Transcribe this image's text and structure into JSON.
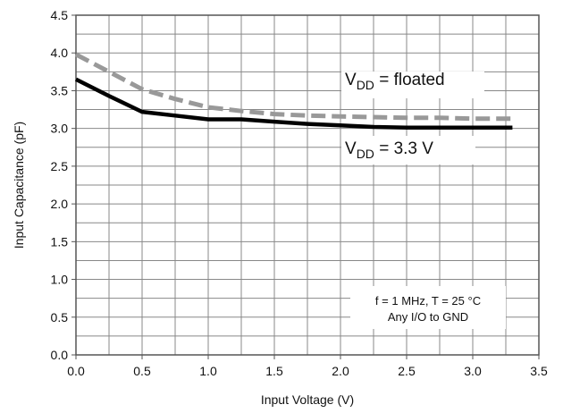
{
  "chart_data": {
    "type": "line",
    "xlabel": "Input Voltage (V)",
    "ylabel": "Input Capacitance  (pF)",
    "xlim": [
      0,
      3.5
    ],
    "ylim": [
      0,
      4.5
    ],
    "x_ticks": [
      "0.0",
      "0.5",
      "1.0",
      "1.5",
      "2.0",
      "2.5",
      "3.0",
      "3.5"
    ],
    "y_ticks": [
      "0.0",
      "0.5",
      "1.0",
      "1.5",
      "2.0",
      "2.5",
      "3.0",
      "3.5",
      "4.0",
      "4.5"
    ],
    "grid": true,
    "series": [
      {
        "name": "VDD = floated",
        "label_main": "V",
        "label_sub": "DD",
        "label_rest": " = floated",
        "style": "dashed",
        "color": "#999999",
        "x": [
          0.0,
          0.25,
          0.5,
          0.75,
          1.0,
          1.25,
          1.5,
          1.75,
          2.0,
          2.25,
          2.5,
          2.75,
          3.0,
          3.3
        ],
        "y": [
          3.98,
          3.75,
          3.52,
          3.39,
          3.28,
          3.23,
          3.19,
          3.17,
          3.16,
          3.15,
          3.14,
          3.14,
          3.13,
          3.13
        ]
      },
      {
        "name": "VDD = 3.3 V",
        "label_main": "V",
        "label_sub": "DD",
        "label_rest": " = 3.3 V",
        "style": "solid",
        "color": "#000000",
        "x": [
          0.0,
          0.25,
          0.5,
          0.75,
          1.0,
          1.25,
          1.5,
          1.75,
          2.0,
          2.25,
          2.5,
          2.75,
          3.0,
          3.3
        ],
        "y": [
          3.65,
          3.43,
          3.22,
          3.17,
          3.12,
          3.12,
          3.09,
          3.06,
          3.04,
          3.02,
          3.01,
          3.01,
          3.01,
          3.01
        ]
      }
    ],
    "annotation": [
      "f = 1 MHz, T = 25 °C",
      "Any I/O to GND"
    ]
  }
}
